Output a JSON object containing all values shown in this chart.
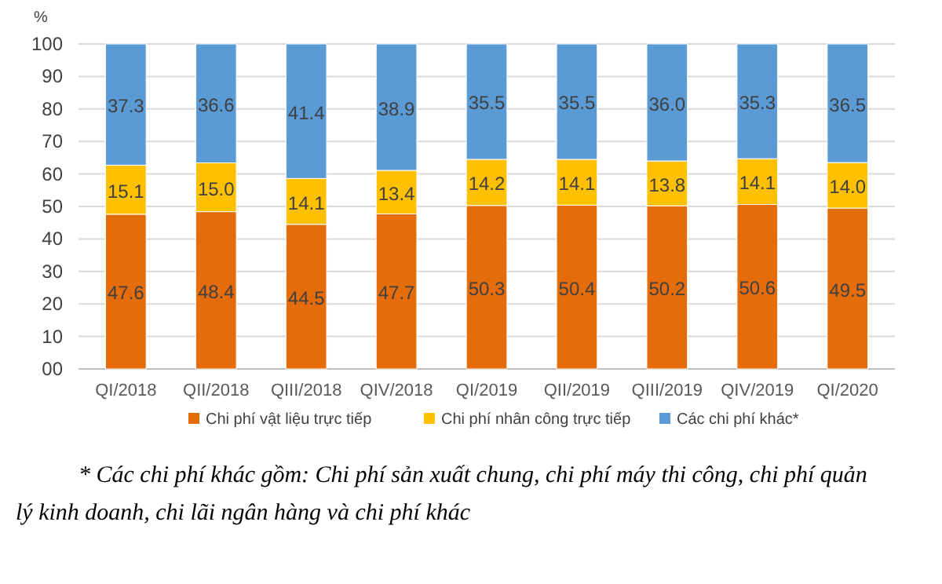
{
  "chart_data": {
    "type": "bar",
    "stacked": true,
    "ylabel": "%",
    "categories": [
      "QI/2018",
      "QII/2018",
      "QIII/2018",
      "QIV/2018",
      "QI/2019",
      "QII/2019",
      "QIII/2019",
      "QIV/2019",
      "QI/2020"
    ],
    "series": [
      {
        "name": "Chi phí vật liệu trực tiếp",
        "color": "#e46c0a",
        "values": [
          47.6,
          48.4,
          44.5,
          47.7,
          50.3,
          50.4,
          50.2,
          50.6,
          49.5
        ],
        "value_labels": [
          "47.6",
          "48.4",
          "44.5",
          "47.7",
          "50.3",
          "50.4",
          "50.2",
          "50.6",
          "49.5"
        ]
      },
      {
        "name": "Chi phí nhân công trực tiếp",
        "color": "#ffc000",
        "values": [
          15.1,
          15.0,
          14.1,
          13.4,
          14.2,
          14.1,
          13.8,
          14.1,
          14.0
        ],
        "value_labels": [
          "15.1",
          "15.0",
          "14.1",
          "13.4",
          "14.2",
          "14.1",
          "13.8",
          "14.1",
          "14.0"
        ]
      },
      {
        "name": "Các chi phí khác*",
        "color": "#5b9bd5",
        "values": [
          37.3,
          36.6,
          41.4,
          38.9,
          35.5,
          35.5,
          36.0,
          35.3,
          36.5
        ],
        "value_labels": [
          "37.3",
          "36.6",
          "41.4",
          "38.9",
          "35.5",
          "35.5",
          "36.0",
          "35.3",
          "36.5"
        ]
      }
    ],
    "ylim": [
      0,
      100
    ],
    "yticks": [
      {
        "value": 0,
        "label": "00"
      },
      10,
      20,
      30,
      40,
      50,
      60,
      70,
      80,
      90,
      100
    ],
    "grid": "y",
    "legend": "bottom",
    "annotations": [
      "* Các chi phí khác gồm: Chi phí sản xuất chung, chi phí máy thi công, chi phí quản lý kinh doanh, chi lãi ngân hàng và chi phí khác"
    ]
  }
}
